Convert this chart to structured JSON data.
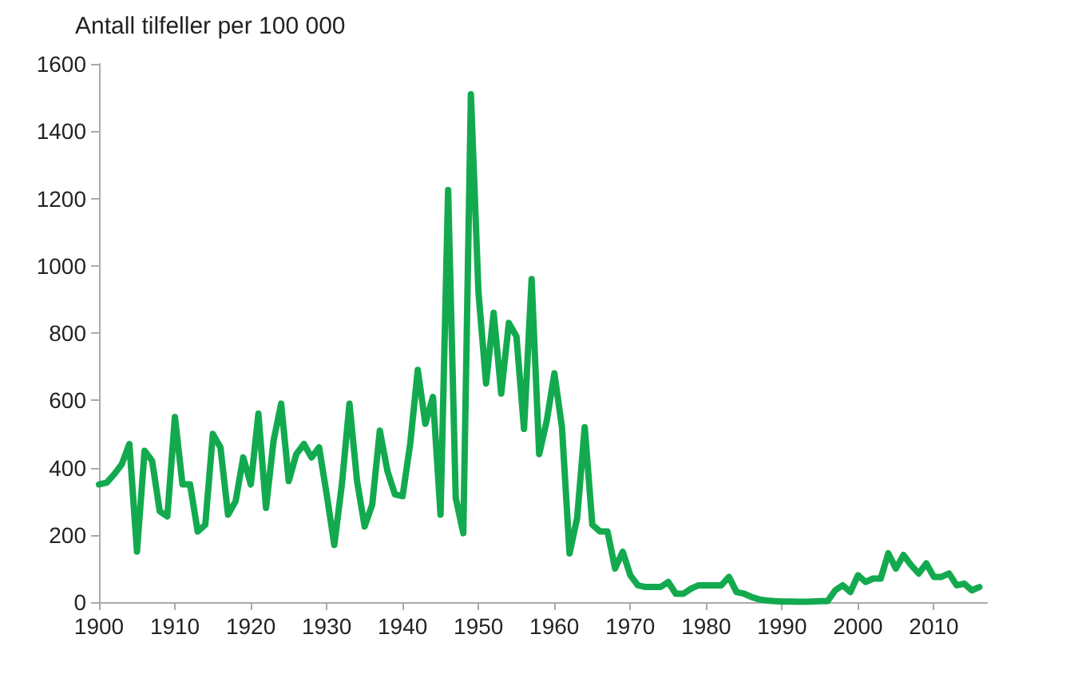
{
  "chart_data": {
    "type": "line",
    "ylabel": "Antall tilfeller per 100 000",
    "x": [
      1900,
      1901,
      1902,
      1903,
      1904,
      1905,
      1906,
      1907,
      1908,
      1909,
      1910,
      1911,
      1912,
      1913,
      1914,
      1915,
      1916,
      1917,
      1918,
      1919,
      1920,
      1921,
      1922,
      1923,
      1924,
      1925,
      1926,
      1927,
      1928,
      1929,
      1930,
      1931,
      1932,
      1933,
      1934,
      1935,
      1936,
      1937,
      1938,
      1939,
      1940,
      1941,
      1942,
      1943,
      1944,
      1945,
      1946,
      1947,
      1948,
      1949,
      1950,
      1951,
      1952,
      1953,
      1954,
      1955,
      1956,
      1957,
      1958,
      1959,
      1960,
      1961,
      1962,
      1963,
      1964,
      1965,
      1966,
      1967,
      1968,
      1969,
      1970,
      1971,
      1972,
      1973,
      1974,
      1975,
      1976,
      1977,
      1978,
      1979,
      1980,
      1981,
      1982,
      1983,
      1984,
      1985,
      1986,
      1987,
      1988,
      1989,
      1990,
      1991,
      1992,
      1993,
      1994,
      1995,
      1996,
      1997,
      1998,
      1999,
      2000,
      2001,
      2002,
      2003,
      2004,
      2005,
      2006,
      2007,
      2008,
      2009,
      2010,
      2011,
      2012,
      2013,
      2014,
      2015,
      2016
    ],
    "series": [
      {
        "color": "#13aa4f",
        "values": [
          350,
          355,
          380,
          410,
          470,
          150,
          450,
          420,
          270,
          255,
          550,
          350,
          350,
          210,
          230,
          500,
          460,
          260,
          300,
          430,
          350,
          560,
          280,
          480,
          590,
          360,
          440,
          470,
          430,
          460,
          320,
          170,
          350,
          590,
          360,
          225,
          290,
          510,
          390,
          320,
          315,
          470,
          690,
          530,
          610,
          260,
          1225,
          310,
          205,
          1510,
          920,
          650,
          860,
          620,
          830,
          790,
          515,
          960,
          440,
          540,
          680,
          520,
          145,
          250,
          520,
          230,
          210,
          210,
          100,
          150,
          80,
          50,
          45,
          45,
          45,
          60,
          25,
          25,
          40,
          50,
          50,
          50,
          50,
          75,
          30,
          25,
          15,
          8,
          5,
          3,
          2,
          2,
          1,
          1,
          2,
          3,
          3,
          35,
          50,
          30,
          80,
          60,
          70,
          70,
          145,
          100,
          140,
          110,
          85,
          115,
          75,
          75,
          85,
          50,
          55,
          35,
          45
        ]
      }
    ],
    "xlim": [
      1900,
      2017
    ],
    "xticks": [
      1900,
      1910,
      1920,
      1930,
      1940,
      1950,
      1960,
      1970,
      1980,
      1990,
      2000,
      2010
    ],
    "ylim": [
      0,
      1600
    ],
    "yticks": [
      0,
      200,
      400,
      600,
      800,
      1000,
      1200,
      1400,
      1600
    ],
    "grid": false,
    "marker": "none",
    "line_style": "solid"
  }
}
